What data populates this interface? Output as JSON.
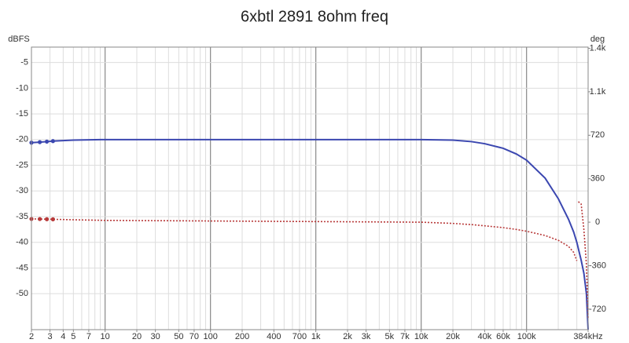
{
  "chart_data": {
    "type": "line",
    "title": "6xbtl 2891 8ohm freq",
    "y_label": "dBFS",
    "y2_label": "deg",
    "x_log": true,
    "grid": true,
    "xlim": [
      2,
      384000
    ],
    "xticks": [
      2,
      3,
      4,
      5,
      7,
      10,
      20,
      30,
      50,
      70,
      100,
      200,
      400,
      700,
      {
        "value": 1000,
        "label": "1k"
      },
      {
        "value": 2000,
        "label": "2k"
      },
      {
        "value": 3000,
        "label": "3k"
      },
      {
        "value": 5000,
        "label": "5k"
      },
      {
        "value": 7000,
        "label": "7k"
      },
      {
        "value": 10000,
        "label": "10k"
      },
      {
        "value": 20000,
        "label": "20k"
      },
      {
        "value": 40000,
        "label": "40k"
      },
      {
        "value": 60000,
        "label": "60k"
      },
      {
        "value": 100000,
        "label": "100k"
      },
      {
        "value": 384000,
        "label": "384kHz"
      }
    ],
    "ylim": [
      -57,
      -2
    ],
    "yticks": [
      -5,
      -10,
      -15,
      -20,
      -25,
      -30,
      -35,
      -40,
      -45,
      -50
    ],
    "y2lim": [
      -890,
      1450
    ],
    "y2ticks": [
      {
        "value": 1440,
        "label": "1.4k"
      },
      {
        "value": 1080,
        "label": "1.1k"
      },
      720,
      360,
      0,
      -360,
      -720
    ],
    "x": [
      2,
      2.4,
      2.8,
      3.2,
      5,
      10,
      100,
      1000,
      10000,
      20000,
      30000,
      40000,
      60000,
      80000,
      100000,
      150000,
      200000,
      250000,
      280000,
      300000,
      305000,
      310000,
      330000,
      350000,
      370000,
      384000
    ],
    "series": [
      {
        "color": "#3b47b0",
        "dash": false,
        "marker_points": 4,
        "values": [
          -20.6,
          -20.5,
          -20.4,
          -20.3,
          -20.1,
          -20,
          -20,
          -20,
          -20,
          -20.1,
          -20.4,
          -20.8,
          -21.7,
          -22.8,
          -24,
          -27.5,
          -31.5,
          -35.5,
          -38,
          -40,
          -40.6,
          -41.2,
          -43.5,
          -46,
          -50,
          -57
        ]
      },
      {
        "color": "#b83a3a",
        "dash": true,
        "marker_points": 4,
        "axis": "y2",
        "values": [
          27,
          26,
          25,
          24,
          20,
          15,
          10,
          5,
          0,
          -10,
          -20,
          -30,
          -45,
          -60,
          -75,
          -110,
          -150,
          -200,
          -250,
          -320,
          null,
          170,
          150,
          -60,
          -350,
          -800
        ]
      }
    ]
  }
}
